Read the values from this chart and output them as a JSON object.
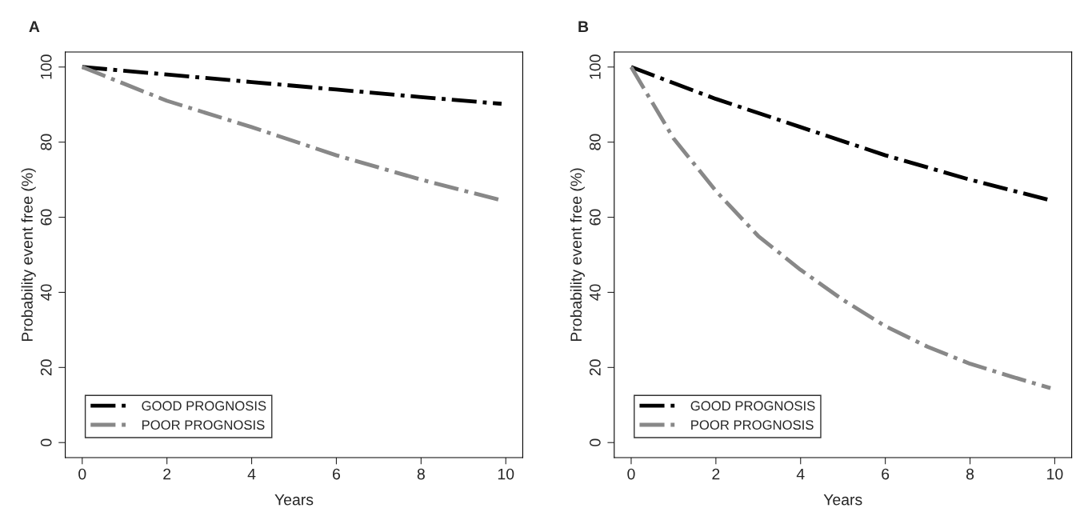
{
  "chart_data": [
    {
      "type": "line",
      "title": "A",
      "xlabel": "Years",
      "ylabel": "Probability event free (%)",
      "xlim": [
        -0.4,
        10.4
      ],
      "ylim": [
        -4,
        104
      ],
      "xticks": [
        0,
        2,
        4,
        6,
        8,
        10
      ],
      "yticks": [
        0,
        20,
        40,
        60,
        80,
        100
      ],
      "grid": false,
      "legend": "bottom left",
      "line_style": "dashdot",
      "series": [
        {
          "name": "GOOD PROGNOSIS",
          "color": "#000000",
          "x": [
            0,
            2,
            4,
            6,
            8,
            9.9
          ],
          "values": [
            100,
            98,
            96,
            94,
            92,
            90.2
          ]
        },
        {
          "name": "POOR PROGNOSIS",
          "color": "#888888",
          "x": [
            0,
            2,
            4,
            6,
            8,
            9.9
          ],
          "values": [
            100,
            91,
            84,
            76.5,
            70,
            64.5
          ]
        }
      ]
    },
    {
      "type": "line",
      "title": "B",
      "xlabel": "Years",
      "ylabel": "Probability event free (%)",
      "xlim": [
        -0.4,
        10.4
      ],
      "ylim": [
        -4,
        104
      ],
      "xticks": [
        0,
        2,
        4,
        6,
        8,
        10
      ],
      "yticks": [
        0,
        20,
        40,
        60,
        80,
        100
      ],
      "grid": false,
      "legend": "bottom left",
      "line_style": "dashdot",
      "series": [
        {
          "name": "GOOD PROGNOSIS",
          "color": "#000000",
          "x": [
            0,
            2,
            4,
            6,
            8,
            9.9
          ],
          "values": [
            100,
            91.5,
            84,
            76.5,
            70,
            64.5
          ]
        },
        {
          "name": "POOR PROGNOSIS",
          "color": "#888888",
          "x": [
            0,
            1,
            2,
            3,
            4,
            5,
            6,
            7,
            8,
            9,
            9.9
          ],
          "values": [
            100,
            81,
            67,
            55,
            46,
            38,
            31,
            25.5,
            21,
            17.5,
            14.5
          ]
        }
      ]
    }
  ]
}
